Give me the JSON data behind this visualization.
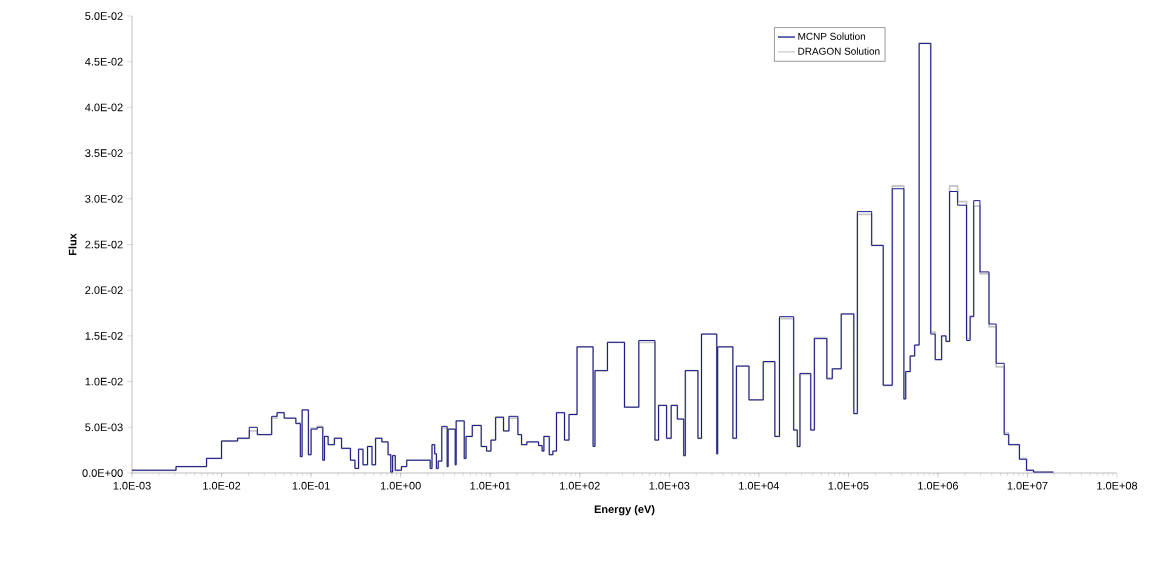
{
  "chart_data": {
    "type": "step",
    "xlabel": "Energy (eV)",
    "ylabel": "Flux",
    "log": "x",
    "legend": "top right",
    "marker": "none",
    "grid": false,
    "xlim": [
      0.001,
      100000000
    ],
    "ylim": [
      0,
      0.05
    ],
    "xticks": [
      {
        "value": 0.001,
        "label": "1.0E-03"
      },
      {
        "value": 0.01,
        "label": "1.0E-02"
      },
      {
        "value": 0.1,
        "label": "1.0E-01"
      },
      {
        "value": 1,
        "label": "1.0E+00"
      },
      {
        "value": 10,
        "label": "1.0E+01"
      },
      {
        "value": 100,
        "label": "1.0E+02"
      },
      {
        "value": 1000,
        "label": "1.0E+03"
      },
      {
        "value": 10000,
        "label": "1.0E+04"
      },
      {
        "value": 100000,
        "label": "1.0E+05"
      },
      {
        "value": 1000000,
        "label": "1.0E+06"
      },
      {
        "value": 10000000,
        "label": "1.0E+07"
      },
      {
        "value": 100000000,
        "label": "1.0E+08"
      }
    ],
    "yticks": [
      {
        "value": 0,
        "label": "0.0E+00"
      },
      {
        "value": 0.005,
        "label": "5.0E-03"
      },
      {
        "value": 0.01,
        "label": "1.0E-02"
      },
      {
        "value": 0.015,
        "label": "1.5E-02"
      },
      {
        "value": 0.02,
        "label": "2.0E-02"
      },
      {
        "value": 0.025,
        "label": "2.5E-02"
      },
      {
        "value": 0.03,
        "label": "3.0E-02"
      },
      {
        "value": 0.035,
        "label": "3.5E-02"
      },
      {
        "value": 0.04,
        "label": "4.0E-02"
      },
      {
        "value": 0.045,
        "label": "4.5E-02"
      },
      {
        "value": 0.05,
        "label": "5.0E-02"
      }
    ],
    "series": [
      {
        "name": "MCNP Solution",
        "color": "#000080",
        "x": [
          0.001,
          0.0031,
          0.0068,
          0.01,
          0.0151,
          0.0204,
          0.0251,
          0.0363,
          0.0417,
          0.0501,
          0.0676,
          0.0759,
          0.0794,
          0.0933,
          0.1,
          0.117,
          0.135,
          0.141,
          0.155,
          0.182,
          0.219,
          0.275,
          0.309,
          0.339,
          0.38,
          0.427,
          0.479,
          0.525,
          0.617,
          0.724,
          0.776,
          0.813,
          0.871,
          1.02,
          1.17,
          2.14,
          2.24,
          2.4,
          2.51,
          2.63,
          2.88,
          3.31,
          3.39,
          4.07,
          4.17,
          5.13,
          5.37,
          6.31,
          7.94,
          9.12,
          10.2,
          11.5,
          14.1,
          16.2,
          20.4,
          22.4,
          25.7,
          34.7,
          38.0,
          39.8,
          45.7,
          50.1,
          55.0,
          67.6,
          75.9,
          93.3,
          141,
          148,
          204,
          316,
          457,
          692,
          759,
          933,
          1050,
          1230,
          1450,
          1510,
          2090,
          2290,
          3390,
          3470,
          5130,
          5620,
          7760,
          11200,
          15100,
          17000,
          24500,
          26900,
          28800,
          38000,
          41700,
          57500,
          66100,
          83200,
          115000,
          126000,
          182000,
          245000,
          309000,
          417000,
          437000,
          490000,
          550000,
          617000,
          832000,
          933000,
          1100000,
          1230000,
          1350000,
          1660000,
          2090000,
          2290000,
          2510000,
          2950000,
          3720000,
          4470000,
          5500000,
          6170000,
          8130000,
          9770000,
          11700000,
          19500000
        ],
        "values": [
          0.0003,
          0.0007,
          0.0016,
          0.0035,
          0.0038,
          0.005,
          0.0042,
          0.0062,
          0.0066,
          0.006,
          0.0054,
          0.0018,
          0.0069,
          0.002,
          0.0048,
          0.005,
          0.0014,
          0.004,
          0.0031,
          0.0038,
          0.0027,
          0.0014,
          0.0005,
          0.0026,
          0.0009,
          0.0029,
          0.0009,
          0.0038,
          0.0034,
          0.002,
          0.0001,
          0.0019,
          0.0003,
          0.0007,
          0.0014,
          0.0005,
          0.0031,
          0.0021,
          0.0005,
          0.0013,
          0.0051,
          0.0007,
          0.0048,
          0.0009,
          0.0057,
          0.0016,
          0.004,
          0.0052,
          0.0029,
          0.0024,
          0.0036,
          0.0061,
          0.0046,
          0.0062,
          0.0042,
          0.0031,
          0.0034,
          0.003,
          0.0024,
          0.004,
          0.002,
          0.0024,
          0.0066,
          0.0036,
          0.0064,
          0.0138,
          0.0029,
          0.0112,
          0.0143,
          0.0072,
          0.0145,
          0.0036,
          0.0074,
          0.0038,
          0.0074,
          0.0059,
          0.0019,
          0.0112,
          0.0038,
          0.0152,
          0.0021,
          0.0138,
          0.0038,
          0.0117,
          0.008,
          0.0122,
          0.004,
          0.0171,
          0.0047,
          0.0029,
          0.0109,
          0.0047,
          0.0147,
          0.0103,
          0.0114,
          0.0174,
          0.0065,
          0.0286,
          0.0249,
          0.0096,
          0.0311,
          0.0081,
          0.0111,
          0.0128,
          0.014,
          0.047,
          0.0152,
          0.0124,
          0.015,
          0.0144,
          0.0308,
          0.0293,
          0.0145,
          0.0171,
          0.0298,
          0.022,
          0.0163,
          0.012,
          0.0042,
          0.0031,
          0.0015,
          0.0003,
          0.0001,
          0.0001
        ]
      },
      {
        "name": "DRAGON Solution",
        "color": "#c8c8c8",
        "x": [
          0.001,
          0.0031,
          0.0068,
          0.01,
          0.0151,
          0.0204,
          0.0251,
          0.0363,
          0.0417,
          0.0501,
          0.0676,
          0.0759,
          0.0794,
          0.0933,
          0.1,
          0.117,
          0.135,
          0.141,
          0.155,
          0.182,
          0.219,
          0.275,
          0.309,
          0.339,
          0.38,
          0.427,
          0.479,
          0.525,
          0.617,
          0.724,
          0.776,
          0.813,
          0.871,
          1.02,
          1.17,
          2.14,
          2.24,
          2.4,
          2.51,
          2.63,
          2.88,
          3.31,
          3.39,
          4.07,
          4.17,
          5.13,
          5.37,
          6.31,
          7.94,
          9.12,
          10.2,
          11.5,
          14.1,
          16.2,
          20.4,
          22.4,
          25.7,
          34.7,
          38.0,
          39.8,
          45.7,
          50.1,
          55.0,
          67.6,
          75.9,
          93.3,
          141,
          148,
          204,
          316,
          457,
          692,
          759,
          933,
          1050,
          1230,
          1450,
          1510,
          2090,
          2290,
          3390,
          3470,
          5130,
          5620,
          7760,
          11200,
          15100,
          17000,
          24500,
          26900,
          28800,
          38000,
          41700,
          57500,
          66100,
          83200,
          115000,
          126000,
          182000,
          245000,
          309000,
          417000,
          437000,
          490000,
          550000,
          617000,
          832000,
          933000,
          1100000,
          1230000,
          1350000,
          1660000,
          2090000,
          2290000,
          2510000,
          2950000,
          3720000,
          4470000,
          5500000,
          6170000,
          8130000,
          9770000,
          11700000,
          19500000
        ],
        "values": [
          0.0003,
          0.0007,
          0.0016,
          0.0035,
          0.0038,
          0.0046,
          0.0042,
          0.006,
          0.0066,
          0.006,
          0.0055,
          0.0018,
          0.0069,
          0.002,
          0.0049,
          0.0051,
          0.0014,
          0.004,
          0.0031,
          0.0038,
          0.0027,
          0.0014,
          0.0005,
          0.0026,
          0.0009,
          0.0029,
          0.0009,
          0.0038,
          0.0034,
          0.002,
          0.0001,
          0.0019,
          0.0003,
          0.0007,
          0.0014,
          0.0005,
          0.0031,
          0.0021,
          0.0005,
          0.0013,
          0.0049,
          0.0007,
          0.0048,
          0.0009,
          0.0057,
          0.0016,
          0.004,
          0.0052,
          0.0029,
          0.0024,
          0.0036,
          0.0061,
          0.0046,
          0.006,
          0.0042,
          0.0031,
          0.0034,
          0.003,
          0.0024,
          0.004,
          0.002,
          0.0024,
          0.0066,
          0.0036,
          0.0064,
          0.0138,
          0.003,
          0.0112,
          0.0143,
          0.0072,
          0.0143,
          0.0036,
          0.0074,
          0.0038,
          0.0074,
          0.0059,
          0.0019,
          0.0112,
          0.0038,
          0.0152,
          0.0021,
          0.0138,
          0.0038,
          0.0117,
          0.008,
          0.0121,
          0.004,
          0.0169,
          0.0047,
          0.0029,
          0.0108,
          0.0047,
          0.0148,
          0.0104,
          0.0114,
          0.0174,
          0.0065,
          0.0283,
          0.0249,
          0.0096,
          0.0314,
          0.0081,
          0.0111,
          0.0128,
          0.014,
          0.047,
          0.0154,
          0.0124,
          0.015,
          0.0144,
          0.0314,
          0.0297,
          0.0147,
          0.0172,
          0.0292,
          0.0218,
          0.016,
          0.0116,
          0.0044,
          0.0031,
          0.0016,
          0.0003,
          0.0001,
          0.0001
        ]
      }
    ]
  }
}
